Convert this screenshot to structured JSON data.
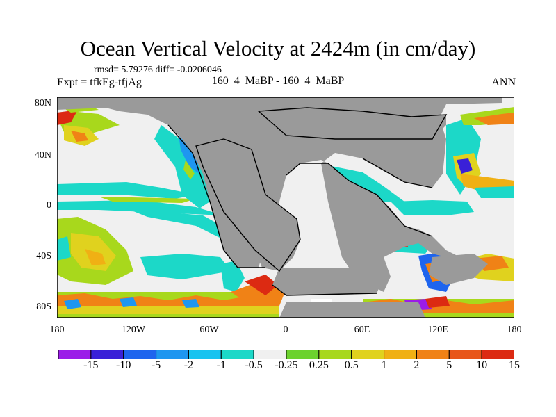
{
  "header": {
    "title": "Ocean Vertical Velocity at 2424m (in cm/day)",
    "stats": "rmsd= 5.79276 diff= -0.0206046",
    "expt": "Expt = tfkEg-tfjAg",
    "center_label": "160_4_MaBP - 160_4_MaBP",
    "season": "ANN"
  },
  "axes": {
    "y_ticks": [
      "80N",
      "40N",
      "0",
      "40S",
      "80S"
    ],
    "x_ticks": [
      "180",
      "120W",
      "60W",
      "0",
      "60E",
      "120E",
      "180"
    ]
  },
  "colorbar": {
    "colors": [
      "#9b1ce8",
      "#3a20d8",
      "#1e64ee",
      "#1e96f0",
      "#18c3f0",
      "#1cd8c8",
      "#f0f0f0",
      "#6cd22e",
      "#a8d81c",
      "#e0d21e",
      "#f0b014",
      "#f08216",
      "#e8561a",
      "#dc2a12"
    ],
    "labels": [
      "-15",
      "-10",
      "-5",
      "-2",
      "-1",
      "-0.5",
      "-0.25",
      "0.25",
      "0.5",
      "1",
      "2",
      "5",
      "10",
      "15"
    ]
  },
  "colors": {
    "land": "#9a9a9a",
    "neutral": "#f0f0f0"
  }
}
